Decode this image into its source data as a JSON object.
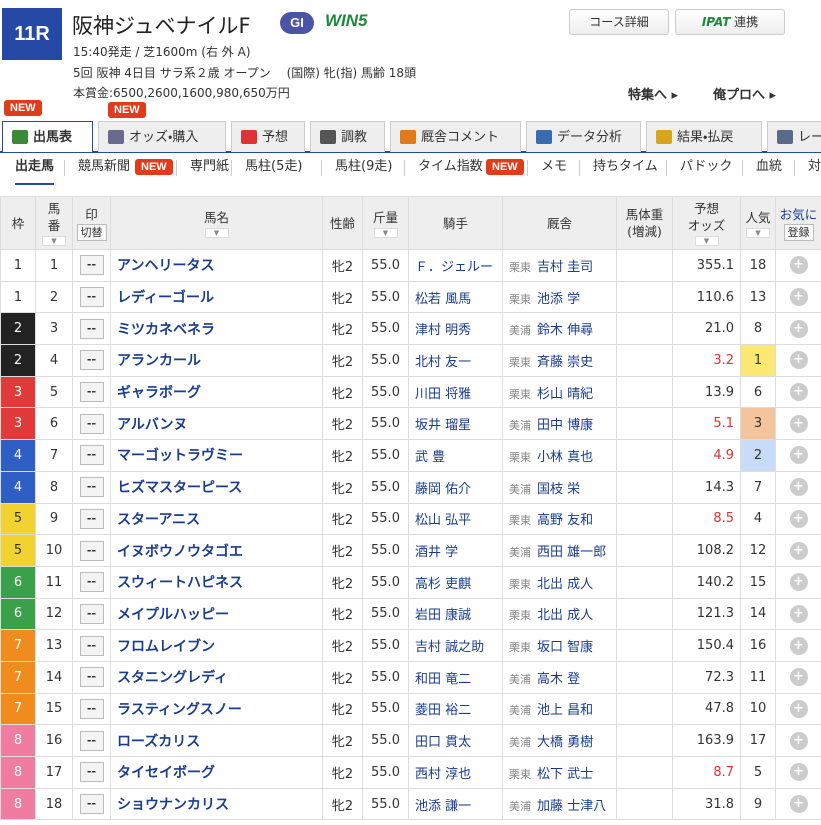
{
  "header": {
    "race_no": "11R",
    "title": "阪神ジュベナイルF",
    "grade": "GI",
    "win5": "WIN5",
    "course_button": "コース詳細",
    "ipat_logo": "IPAT",
    "ipat_button": "連携",
    "info1": "15:40発走 / 芝1600m (右 外 A)",
    "info2": "5回 阪神 4日目 サラ系２歳 オープン　 (国際) 牝(指) 馬齢 18頭",
    "prize": "本賞金:6500,2600,1600,980,650万円",
    "link1": "特集へ",
    "link2": "俺プロへ"
  },
  "tabs": {
    "new_badge": "NEW",
    "items": [
      "出馬表",
      "オッズ・購入",
      "予想",
      "調教",
      "厩舎コメント",
      "データ分析",
      "結果・払戻",
      "レー"
    ]
  },
  "subtabs": {
    "new_badge": "NEW",
    "items": [
      "出走馬",
      "競馬新聞",
      "専門紙",
      "馬柱(5走)",
      "馬柱(9走)",
      "タイム指数",
      "メモ",
      "持ちタイム",
      "パドック",
      "血統",
      "対"
    ]
  },
  "table": {
    "headers": [
      "枠",
      "馬\n番",
      "印",
      "馬名",
      "性齢",
      "斤量",
      "騎手",
      "厩舎",
      "馬体重\n(増減)",
      "予想\nオッズ",
      "人気",
      "お気に"
    ],
    "switch_button": "切替",
    "register_button": "登録",
    "rows": [
      [
        "1",
        "1",
        "--",
        "アンヘリータス",
        "牝2",
        "55.0",
        "Ｆ．ジェルー",
        "栗東",
        "吉村 圭司",
        "355.1",
        "18"
      ],
      [
        "1",
        "2",
        "--",
        "レディーゴール",
        "牝2",
        "55.0",
        "松若 風馬",
        "栗東",
        "池添 学",
        "110.6",
        "13"
      ],
      [
        "2",
        "3",
        "--",
        "ミツカネベネラ",
        "牝2",
        "55.0",
        "津村 明秀",
        "美浦",
        "鈴木 伸尋",
        "21.0",
        "8"
      ],
      [
        "2",
        "4",
        "--",
        "アランカール",
        "牝2",
        "55.0",
        "北村 友一",
        "栗東",
        "斉藤 崇史",
        "3.2",
        "1"
      ],
      [
        "3",
        "5",
        "--",
        "ギャラボーグ",
        "牝2",
        "55.0",
        "川田 将雅",
        "栗東",
        "杉山 晴紀",
        "13.9",
        "6"
      ],
      [
        "3",
        "6",
        "--",
        "アルバンヌ",
        "牝2",
        "55.0",
        "坂井 瑠星",
        "美浦",
        "田中 博康",
        "5.1",
        "3"
      ],
      [
        "4",
        "7",
        "--",
        "マーゴットラヴミー",
        "牝2",
        "55.0",
        "武 豊",
        "栗東",
        "小林 真也",
        "4.9",
        "2"
      ],
      [
        "4",
        "8",
        "--",
        "ヒズマスターピース",
        "牝2",
        "55.0",
        "藤岡 佑介",
        "美浦",
        "国枝 栄",
        "14.3",
        "7"
      ],
      [
        "5",
        "9",
        "--",
        "スターアニス",
        "牝2",
        "55.0",
        "松山 弘平",
        "栗東",
        "高野 友和",
        "8.5",
        "4"
      ],
      [
        "5",
        "10",
        "--",
        "イヌボウノウタゴエ",
        "牝2",
        "55.0",
        "酒井 学",
        "美浦",
        "西田 雄一郎",
        "108.2",
        "12"
      ],
      [
        "6",
        "11",
        "--",
        "スウィートハピネス",
        "牝2",
        "55.0",
        "高杉 吏麒",
        "栗東",
        "北出 成人",
        "140.2",
        "15"
      ],
      [
        "6",
        "12",
        "--",
        "メイプルハッピー",
        "牝2",
        "55.0",
        "岩田 康誠",
        "栗東",
        "北出 成人",
        "121.3",
        "14"
      ],
      [
        "7",
        "13",
        "--",
        "フロムレイブン",
        "牝2",
        "55.0",
        "吉村 誠之助",
        "栗東",
        "坂口 智康",
        "150.4",
        "16"
      ],
      [
        "7",
        "14",
        "--",
        "スタニングレディ",
        "牝2",
        "55.0",
        "和田 竜二",
        "美浦",
        "高木 登",
        "72.3",
        "11"
      ],
      [
        "7",
        "15",
        "--",
        "ラスティングスノー",
        "牝2",
        "55.0",
        "菱田 裕二",
        "美浦",
        "池上 昌和",
        "47.8",
        "10"
      ],
      [
        "8",
        "16",
        "--",
        "ローズカリス",
        "牝2",
        "55.0",
        "田口 貫太",
        "美浦",
        "大橋 勇樹",
        "163.9",
        "17"
      ],
      [
        "8",
        "17",
        "--",
        "タイセイボーグ",
        "牝2",
        "55.0",
        "西村 淳也",
        "栗東",
        "松下 武士",
        "8.7",
        "5"
      ],
      [
        "8",
        "18",
        "--",
        "ショウナンカリス",
        "牝2",
        "55.0",
        "池添 謙一",
        "美浦",
        "加藤 士津八",
        "31.8",
        "9"
      ]
    ]
  }
}
